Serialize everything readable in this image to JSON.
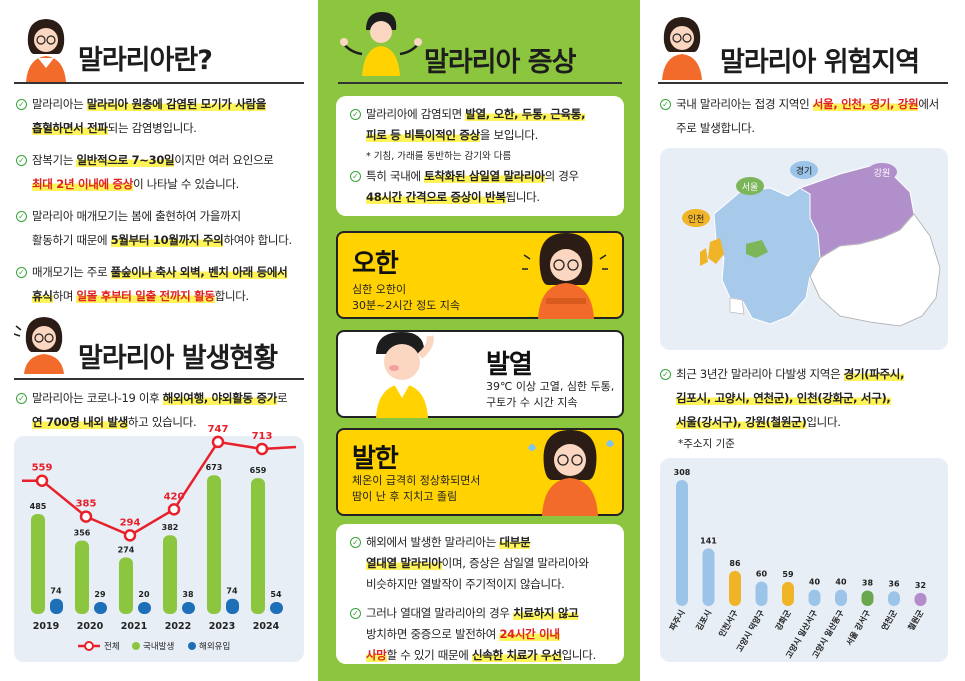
{
  "col1": {
    "title1": "말라리아란?",
    "bullets1": [
      {
        "parts": [
          [
            "말라리아는 ",
            ""
          ],
          [
            "말라리아 원충에 감염된 모기가 사람을",
            "hl"
          ]
        ]
      },
      {
        "parts": [
          [
            "흡혈하면서 전파",
            "hl"
          ],
          [
            "되는 감염병입니다.",
            ""
          ]
        ]
      },
      {
        "parts": [
          [
            "잠복기는 ",
            ""
          ],
          [
            "일반적으로 7~30일",
            "hl"
          ],
          [
            "이지만 여러 요인으로",
            ""
          ]
        ]
      },
      {
        "parts": [
          [
            "최대 2년 이내에 증상",
            "redhl"
          ],
          [
            "이 나타날 수 있습니다.",
            ""
          ]
        ]
      },
      {
        "parts": [
          [
            "말라리아 매개모기는 봄에 출현하여 가을까지",
            ""
          ]
        ]
      },
      {
        "parts": [
          [
            "활동하기 때문에 ",
            ""
          ],
          [
            "5월부터 10월까지 주의",
            "hl"
          ],
          [
            "하여야 합니다.",
            ""
          ]
        ]
      },
      {
        "parts": [
          [
            "매개모기는 주로 ",
            ""
          ],
          [
            "풀숲이나 축사 외벽, 벤치 아래 등에서",
            "hl"
          ]
        ]
      },
      {
        "parts": [
          [
            "휴식",
            "hl"
          ],
          [
            "하며 ",
            ""
          ],
          [
            "일몰 후부터 일출 전까지 활동",
            "redhl"
          ],
          [
            "합니다.",
            ""
          ]
        ]
      }
    ],
    "title2": "말라리아 발생현황",
    "bullets2": [
      {
        "parts": [
          [
            "말라리아는 코로나-19 이후 ",
            ""
          ],
          [
            "해외여행, 야외활동 증가",
            "hl"
          ],
          [
            "로",
            ""
          ]
        ]
      },
      {
        "parts": [
          [
            "연 700명 내외 발생",
            "hl"
          ],
          [
            "하고 있습니다.",
            ""
          ]
        ]
      }
    ]
  },
  "chart_data": [
    {
      "type": "bar",
      "categories": [
        "2019",
        "2020",
        "2021",
        "2022",
        "2023",
        "2024"
      ],
      "series": [
        {
          "name": "전체",
          "type": "line",
          "values": [
            559,
            385,
            294,
            420,
            747,
            713
          ],
          "color": "#e8202a"
        },
        {
          "name": "국내발생",
          "values": [
            485,
            356,
            274,
            382,
            673,
            659
          ],
          "color": "#8cc63f"
        },
        {
          "name": "해외유입",
          "values": [
            74,
            29,
            20,
            38,
            74,
            54
          ],
          "color": "#1d6fb8"
        }
      ],
      "legend": [
        "전체",
        "국내발생",
        "해외유입"
      ]
    },
    {
      "type": "bar",
      "categories": [
        "파주시",
        "김포시",
        "인천서구",
        "고양시 덕양구",
        "강화군",
        "고양시 일산서구",
        "고양시 일산동구",
        "서울 강서구",
        "연천군",
        "철원군"
      ],
      "values": [
        308,
        141,
        86,
        60,
        59,
        40,
        40,
        38,
        36,
        32
      ],
      "colors": [
        "#9cc4e8",
        "#9cc4e8",
        "#f0b428",
        "#9cc4e8",
        "#f0b428",
        "#9cc4e8",
        "#9cc4e8",
        "#6aa84f",
        "#9cc4e8",
        "#b48ccc"
      ]
    }
  ],
  "col2": {
    "title": "말라리아 증상",
    "bullets1": [
      {
        "parts": [
          [
            "말라리아에 감염되면 ",
            ""
          ],
          [
            "발열, 오한, 두통, 근육통,",
            "hl"
          ]
        ]
      },
      {
        "parts": [
          [
            "피로 등 비특이적인 증상",
            "hl"
          ],
          [
            "을 보입니다.",
            ""
          ]
        ]
      }
    ],
    "note": "* 기침, 가래를 동반하는 감기와 다름",
    "bullets2": [
      {
        "parts": [
          [
            "특히 국내에 ",
            ""
          ],
          [
            "토착화된 삼일열 말라리아",
            "hl"
          ],
          [
            "의 경우",
            ""
          ]
        ]
      },
      {
        "parts": [
          [
            "48시간 간격으로 증상이 반복",
            "hl"
          ],
          [
            "됩니다.",
            ""
          ]
        ]
      }
    ],
    "symptoms": [
      {
        "title": "오한",
        "desc1": "심한 오한이",
        "desc2": "30분~2시간 정도 지속"
      },
      {
        "title": "발열",
        "desc1": "39℃ 이상 고열, 심한 두통,",
        "desc2": "구토가 수 시간 지속"
      },
      {
        "title": "발한",
        "desc1": "체온이 급격히 정상화되면서",
        "desc2": "땀이 난 후 지치고 졸림"
      }
    ],
    "bullets3": [
      {
        "parts": [
          [
            "해외에서 발생한 말라리아는 ",
            ""
          ],
          [
            "대부분",
            "hl"
          ]
        ]
      },
      {
        "parts": [
          [
            "열대열 말라리아",
            "hl"
          ],
          [
            "이며, 증상은 삼일열 말라리아와",
            ""
          ]
        ]
      },
      {
        "parts": [
          [
            "비슷하지만 열발작이 주기적이지 않습니다.",
            ""
          ]
        ]
      },
      {
        "parts": [
          [
            "그러나 열대열 말라리아의 경우 ",
            ""
          ],
          [
            "치료하지 않고",
            "hl"
          ]
        ]
      },
      {
        "parts": [
          [
            "방치하면 중증으로 발전하여 ",
            ""
          ],
          [
            "24시간 이내",
            "redhl"
          ]
        ]
      },
      {
        "parts": [
          [
            "사망",
            "redhl"
          ],
          [
            "할 수 있기 때문에 ",
            ""
          ],
          [
            "신속한 치료가 우선",
            "hl"
          ],
          [
            "입니다.",
            ""
          ]
        ]
      }
    ]
  },
  "col3": {
    "title": "말라리아 위험지역",
    "bullets1": [
      {
        "parts": [
          [
            "국내 말라리아는 접경 지역인 ",
            ""
          ],
          [
            "서울, 인천, 경기, 강원",
            "redhl"
          ],
          [
            "에서",
            ""
          ]
        ]
      },
      {
        "parts": [
          [
            "주로 발생합니다.",
            ""
          ]
        ]
      }
    ],
    "map_labels": {
      "gyeonggi": "경기",
      "gangwon": "강원",
      "seoul": "서울",
      "incheon": "인천"
    },
    "bullets2": [
      {
        "parts": [
          [
            "최근 3년간 말라리아 다발생 지역은 ",
            ""
          ],
          [
            "경기(파주시,",
            "hl"
          ]
        ]
      },
      {
        "parts": [
          [
            "김포시, 고양시, 연천군), 인천(강화군, 서구),",
            "hl"
          ]
        ]
      },
      {
        "parts": [
          [
            "서울(강서구), 강원(철원군)",
            "hl"
          ],
          [
            "입니다.",
            ""
          ]
        ]
      }
    ],
    "note": "*주소지 기준"
  },
  "colors": {
    "green": "#8cc63f",
    "yellow": "#ffd200",
    "red": "#e8202a",
    "blue": "#1d6fb8"
  }
}
